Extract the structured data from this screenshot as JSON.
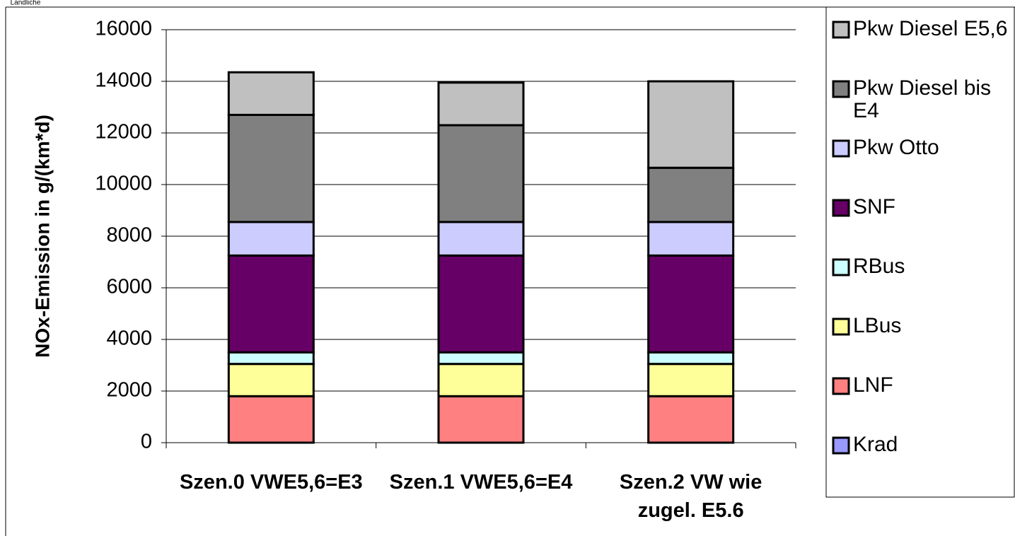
{
  "corner_note": "Landliche",
  "chart_data": {
    "type": "stacked_bar",
    "ylabel": "NOx-Emission in g/(km*d)",
    "categories": [
      "Szen.0 VWE5,6=E3",
      "Szen.1 VWE5,6=E4",
      "Szen.2 VW wie zugel. E5.6"
    ],
    "series": [
      {
        "name": "Krad",
        "color": "#9999ff",
        "values": [
          0,
          0,
          0
        ]
      },
      {
        "name": "LNF",
        "color": "#ff8080",
        "values": [
          1800,
          1800,
          1800
        ]
      },
      {
        "name": "LBus",
        "color": "#ffff99",
        "values": [
          1250,
          1250,
          1250
        ]
      },
      {
        "name": "RBus",
        "color": "#ccffff",
        "values": [
          450,
          450,
          450
        ]
      },
      {
        "name": "SNF",
        "color": "#660066",
        "values": [
          3750,
          3750,
          3750
        ]
      },
      {
        "name": "Pkw Otto",
        "color": "#ccccff",
        "values": [
          1300,
          1300,
          1300
        ]
      },
      {
        "name": "Pkw Diesel bis E4",
        "color": "#808080",
        "values": [
          4150,
          3750,
          2100
        ]
      },
      {
        "name": "Pkw Diesel E5,6",
        "color": "#c0c0c0",
        "values": [
          1650,
          1650,
          3350
        ]
      }
    ],
    "ylim": [
      0,
      16000
    ],
    "yticks": [
      0,
      2000,
      4000,
      6000,
      8000,
      10000,
      12000,
      14000,
      16000
    ],
    "grid": true,
    "legend": "right"
  }
}
